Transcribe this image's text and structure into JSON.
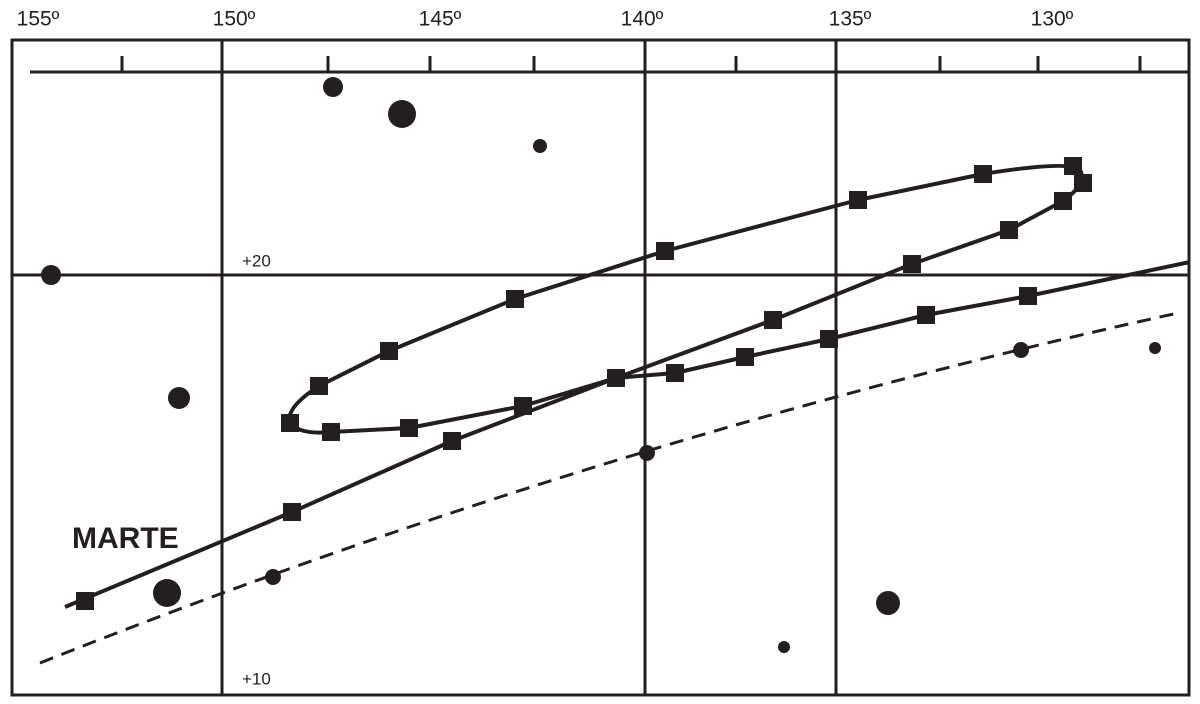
{
  "axis": {
    "longitude_labels": [
      "155º",
      "150º",
      "145º",
      "140º",
      "135º",
      "130º"
    ],
    "declination_labels": [
      "+20",
      "+10"
    ]
  },
  "label": "MARTE"
}
